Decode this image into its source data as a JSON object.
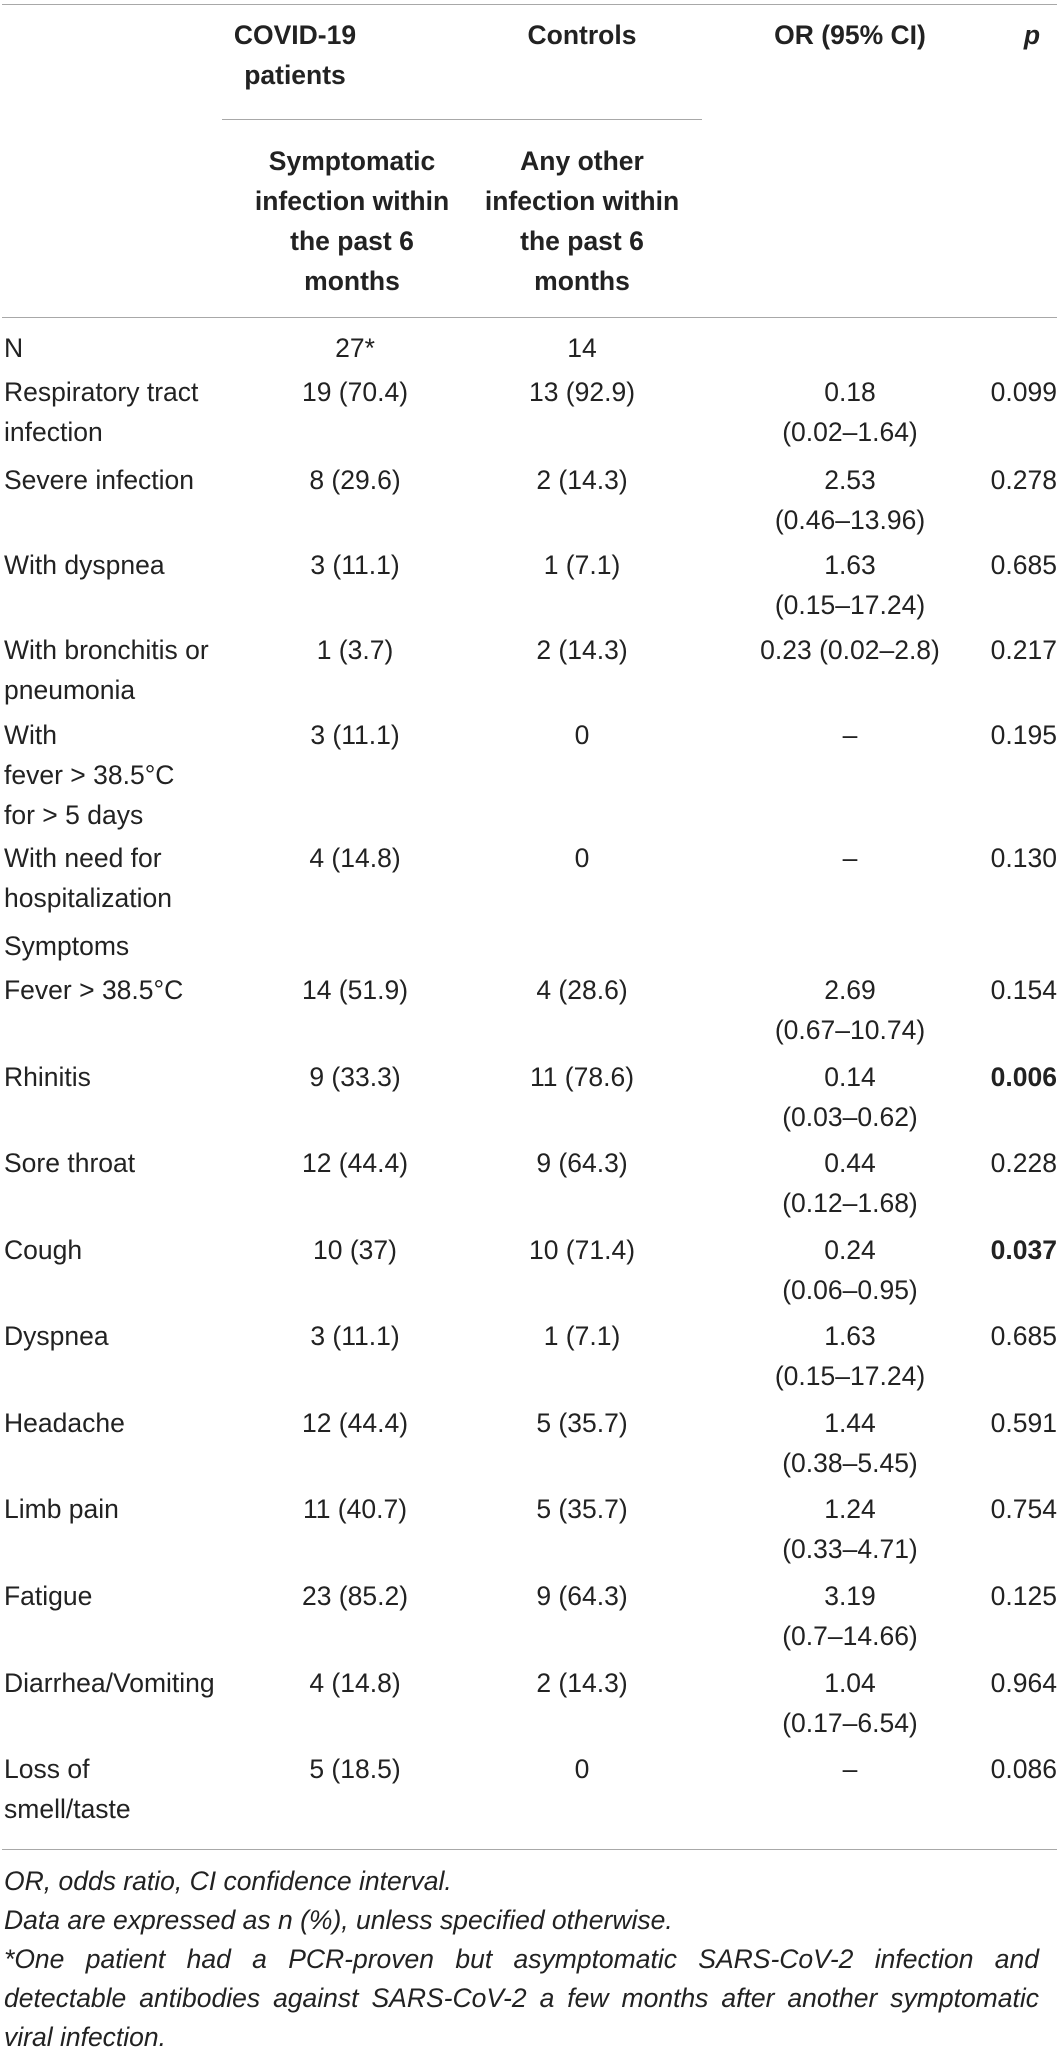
{
  "header": {
    "group_labels": [
      "COVID-19 patients",
      "Controls",
      "OR (95% CI)",
      "p"
    ],
    "sub_labels": [
      "Symptomatic infection within the past 6 months",
      "Any other infection within the past 6 months"
    ]
  },
  "rows": [
    {
      "label": "N",
      "covid": "27*",
      "controls": "14",
      "or": "",
      "p": "",
      "p_bold": false
    },
    {
      "label": "Respiratory tract infection",
      "covid": "19 (70.4)",
      "controls": "13 (92.9)",
      "or": "0.18 (0.02–1.64)",
      "p": "0.099",
      "p_bold": false
    },
    {
      "label": "Severe infection",
      "covid": "8 (29.6)",
      "controls": "2 (14.3)",
      "or": "2.53 (0.46–13.96)",
      "p": "0.278",
      "p_bold": false
    },
    {
      "label": "With dyspnea",
      "covid": "3 (11.1)",
      "controls": "1 (7.1)",
      "or": "1.63 (0.15–17.24)",
      "p": "0.685",
      "p_bold": false
    },
    {
      "label": "With bronchitis or pneumonia",
      "covid": "1 (3.7)",
      "controls": "2 (14.3)",
      "or": "0.23 (0.02–2.8)",
      "p": "0.217",
      "p_bold": false
    },
    {
      "label": "With fever > 38.5°C for > 5 days",
      "covid": "3 (11.1)",
      "controls": "0",
      "or": "–",
      "p": "0.195",
      "p_bold": false
    },
    {
      "label": "With need for hospitalization",
      "covid": "4 (14.8)",
      "controls": "0",
      "or": "–",
      "p": "0.130",
      "p_bold": false
    },
    {
      "label": "Symptoms",
      "covid": "",
      "controls": "",
      "or": "",
      "p": "",
      "p_bold": false
    },
    {
      "label": "Fever > 38.5°C",
      "covid": "14 (51.9)",
      "controls": "4 (28.6)",
      "or": "2.69 (0.67–10.74)",
      "p": "0.154",
      "p_bold": false
    },
    {
      "label": "Rhinitis",
      "covid": "9 (33.3)",
      "controls": "11 (78.6)",
      "or": "0.14 (0.03–0.62)",
      "p": "0.006",
      "p_bold": true
    },
    {
      "label": "Sore throat",
      "covid": "12 (44.4)",
      "controls": "9 (64.3)",
      "or": "0.44 (0.12–1.68)",
      "p": "0.228",
      "p_bold": false
    },
    {
      "label": "Cough",
      "covid": "10 (37)",
      "controls": "10 (71.4)",
      "or": "0.24 (0.06–0.95)",
      "p": "0.037",
      "p_bold": true
    },
    {
      "label": "Dyspnea",
      "covid": "3 (11.1)",
      "controls": "1 (7.1)",
      "or": "1.63 (0.15–17.24)",
      "p": "0.685",
      "p_bold": false
    },
    {
      "label": "Headache",
      "covid": "12 (44.4)",
      "controls": "5 (35.7)",
      "or": "1.44 (0.38–5.45)",
      "p": "0.591",
      "p_bold": false
    },
    {
      "label": "Limb pain",
      "covid": "11 (40.7)",
      "controls": "5 (35.7)",
      "or": "1.24 (0.33–4.71)",
      "p": "0.754",
      "p_bold": false
    },
    {
      "label": "Fatigue",
      "covid": "23 (85.2)",
      "controls": "9 (64.3)",
      "or": "3.19 (0.7–14.66)",
      "p": "0.125",
      "p_bold": false
    },
    {
      "label": "Diarrhea/Vomiting",
      "covid": "4 (14.8)",
      "controls": "2 (14.3)",
      "or": "1.04 (0.17–6.54)",
      "p": "0.964",
      "p_bold": false
    },
    {
      "label": "Loss of smell/taste",
      "covid": "5 (18.5)",
      "controls": "0",
      "or": "–",
      "p": "0.086",
      "p_bold": false
    }
  ],
  "footnotes": [
    "OR, odds ratio, CI confidence interval.",
    "Data are expressed as n (%), unless specified otherwise.",
    "*One patient had a PCR-proven but asymptomatic SARS-CoV-2 infection and detectable antibodies against SARS-CoV-2 a few months after another symptomatic viral infection."
  ]
}
